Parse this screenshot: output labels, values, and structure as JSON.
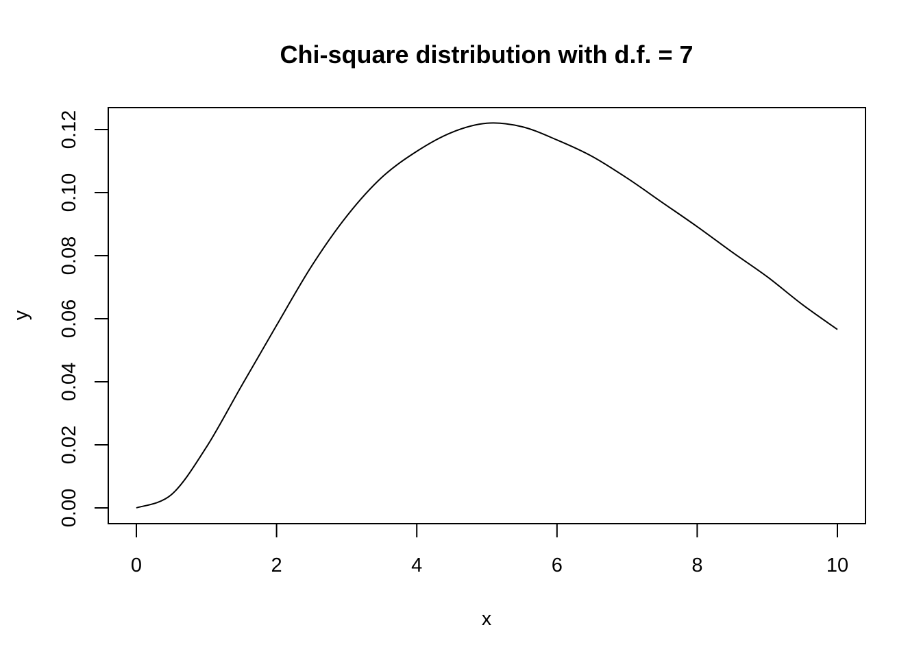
{
  "chart_data": {
    "type": "line",
    "title": "Chi-square distribution with d.f. = 7",
    "xlabel": "x",
    "ylabel": "y",
    "xlim": [
      0,
      10
    ],
    "ylim": [
      0,
      0.12
    ],
    "x_ticks": [
      0,
      2,
      4,
      6,
      8,
      10
    ],
    "x_tick_labels": [
      "0",
      "2",
      "4",
      "6",
      "8",
      "10"
    ],
    "y_ticks": [
      0,
      0.02,
      0.04,
      0.06,
      0.08,
      0.1,
      0.12
    ],
    "y_tick_labels": [
      "0.00",
      "0.02",
      "0.04",
      "0.06",
      "0.08",
      "0.10",
      "0.12"
    ],
    "grid": false,
    "legend": "none",
    "line_color": "#000000",
    "series": [
      {
        "x": [
          0,
          0.5,
          1,
          1.5,
          2,
          2.5,
          3,
          3.5,
          4,
          4.5,
          5,
          5.5,
          6,
          6.5,
          7,
          7.5,
          8,
          8.5,
          9,
          9.5,
          10
        ],
        "values": [
          0,
          0.0042,
          0.0193,
          0.0387,
          0.0579,
          0.0767,
          0.0925,
          0.1048,
          0.1131,
          0.1191,
          0.122,
          0.1209,
          0.1167,
          0.1115,
          0.1046,
          0.0969,
          0.0892,
          0.0811,
          0.0733,
          0.0645,
          0.0566
        ]
      }
    ]
  }
}
